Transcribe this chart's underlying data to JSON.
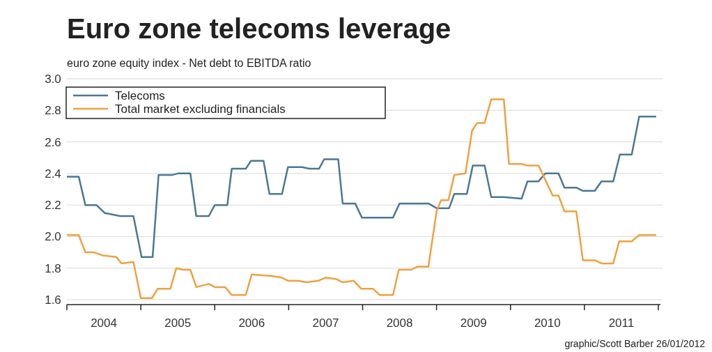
{
  "chart_data": {
    "type": "line",
    "title": "Euro zone telecoms leverage",
    "subtitle": "euro zone equity index - Net debt to EBITDA ratio",
    "annotations": [
      "graphic/Scott Barber 26/01/2012"
    ],
    "xlim": [
      2004,
      2012
    ],
    "xticks": [
      {
        "value": 2004,
        "label": null
      },
      {
        "value": 2004.5,
        "label": "2004"
      },
      {
        "value": 2005,
        "label": null
      },
      {
        "value": 2005.5,
        "label": "2005"
      },
      {
        "value": 2006,
        "label": null
      },
      {
        "value": 2006.5,
        "label": "2006"
      },
      {
        "value": 2007,
        "label": null
      },
      {
        "value": 2007.5,
        "label": "2007"
      },
      {
        "value": 2008,
        "label": null
      },
      {
        "value": 2008.5,
        "label": "2008"
      },
      {
        "value": 2009,
        "label": null
      },
      {
        "value": 2009.5,
        "label": "2009"
      },
      {
        "value": 2010,
        "label": null
      },
      {
        "value": 2010.5,
        "label": "2010"
      },
      {
        "value": 2011,
        "label": null
      },
      {
        "value": 2011.5,
        "label": "2011"
      },
      {
        "value": 2012,
        "label": null
      }
    ],
    "ylim": [
      1.6,
      3.0
    ],
    "yticks": [
      1.6,
      1.8,
      {
        "value": 2.0,
        "label": "2.0"
      },
      2.2,
      2.4,
      2.6,
      2.8,
      {
        "value": 3.0,
        "label": "3.0"
      }
    ],
    "grid": "y",
    "legend": "top left",
    "line_style": "solid",
    "marker": "none",
    "series": [
      {
        "name": "Telecoms",
        "color": "#4a7796",
        "x": [
          2004.0,
          2004.16,
          2004.25,
          2004.4,
          2004.51,
          2004.72,
          2004.9,
          2005.01,
          2005.16,
          2005.24,
          2005.42,
          2005.5,
          2005.67,
          2005.75,
          2005.92,
          2006.0,
          2006.17,
          2006.23,
          2006.42,
          2006.49,
          2006.66,
          2006.74,
          2006.91,
          2006.99,
          2007.18,
          2007.28,
          2007.41,
          2007.48,
          2007.67,
          2007.73,
          2007.9,
          2007.99,
          2008.16,
          2008.25,
          2008.41,
          2008.5,
          2008.89,
          2009.0,
          2009.17,
          2009.24,
          2009.41,
          2009.49,
          2009.65,
          2009.74,
          2009.91,
          2010.15,
          2010.23,
          2010.38,
          2010.47,
          2010.65,
          2010.73,
          2010.89,
          2010.98,
          2011.14,
          2011.23,
          2011.39,
          2011.48,
          2011.64,
          2011.74,
          2011.97
        ],
        "values": [
          2.38,
          2.38,
          2.2,
          2.2,
          2.15,
          2.13,
          2.13,
          1.87,
          1.87,
          2.39,
          2.39,
          2.4,
          2.4,
          2.13,
          2.13,
          2.2,
          2.2,
          2.43,
          2.43,
          2.48,
          2.48,
          2.27,
          2.27,
          2.44,
          2.44,
          2.43,
          2.43,
          2.49,
          2.49,
          2.21,
          2.21,
          2.12,
          2.12,
          2.12,
          2.12,
          2.21,
          2.21,
          2.18,
          2.18,
          2.27,
          2.27,
          2.45,
          2.45,
          2.25,
          2.25,
          2.24,
          2.35,
          2.35,
          2.4,
          2.4,
          2.31,
          2.31,
          2.29,
          2.29,
          2.35,
          2.35,
          2.52,
          2.52,
          2.76,
          2.76
        ]
      },
      {
        "name": "Total market excluding financials",
        "color": "#f0a040",
        "x": [
          2004.0,
          2004.16,
          2004.25,
          2004.37,
          2004.49,
          2004.67,
          2004.74,
          2004.9,
          2005.0,
          2005.15,
          2005.23,
          2005.4,
          2005.48,
          2005.57,
          2005.67,
          2005.75,
          2005.92,
          2006.0,
          2006.14,
          2006.23,
          2006.42,
          2006.5,
          2006.77,
          2006.91,
          2006.99,
          2007.12,
          2007.24,
          2007.4,
          2007.5,
          2007.65,
          2007.73,
          2007.88,
          2007.98,
          2008.14,
          2008.23,
          2008.41,
          2008.49,
          2008.66,
          2008.74,
          2008.89,
          2009.0,
          2009.06,
          2009.16,
          2009.24,
          2009.39,
          2009.48,
          2009.55,
          2009.65,
          2009.74,
          2009.91,
          2009.98,
          2010.15,
          2010.23,
          2010.38,
          2010.57,
          2010.65,
          2010.73,
          2010.89,
          2010.98,
          2011.14,
          2011.23,
          2011.39,
          2011.47,
          2011.64,
          2011.74,
          2011.97
        ],
        "values": [
          2.01,
          2.01,
          1.9,
          1.9,
          1.88,
          1.87,
          1.83,
          1.84,
          1.61,
          1.61,
          1.67,
          1.67,
          1.8,
          1.79,
          1.79,
          1.68,
          1.7,
          1.68,
          1.68,
          1.63,
          1.63,
          1.76,
          1.75,
          1.74,
          1.72,
          1.72,
          1.71,
          1.72,
          1.74,
          1.73,
          1.71,
          1.72,
          1.67,
          1.67,
          1.63,
          1.63,
          1.79,
          1.79,
          1.81,
          1.81,
          2.16,
          2.23,
          2.23,
          2.39,
          2.4,
          2.67,
          2.72,
          2.72,
          2.87,
          2.87,
          2.46,
          2.46,
          2.45,
          2.45,
          2.26,
          2.26,
          2.16,
          2.16,
          1.85,
          1.85,
          1.83,
          1.83,
          1.97,
          1.97,
          2.01,
          2.01
        ]
      }
    ]
  }
}
